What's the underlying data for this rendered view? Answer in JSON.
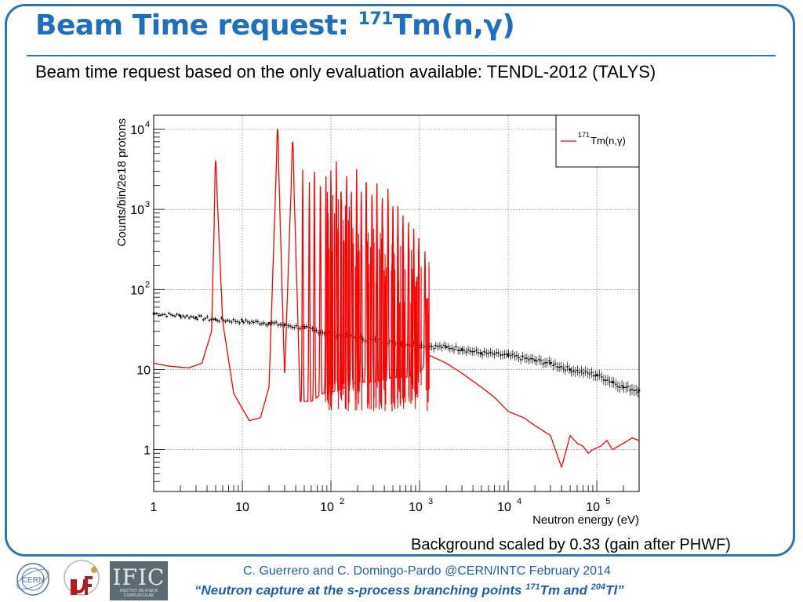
{
  "header": {
    "title_main": "Beam Time request: ",
    "title_sup": "171",
    "title_tail": "Tm(n,γ)",
    "subtitle": "Beam time request based on the only evaluation available: TENDL-2012 (TALYS)"
  },
  "note": "Background scaled by 0.33 (gain after PHWF)",
  "footer": {
    "line1": "C. Guerrero and C. Domingo-Pardo @CERN/INTC February 2014",
    "line2_part1": "“Neutron capture at the s-process branching points ",
    "line2_sup1": "171",
    "line2_part2": "Tm and ",
    "line2_sup2": "204",
    "line2_part3": "Tl”"
  },
  "logos": {
    "cern": "CERN",
    "ific": "IFIC",
    "ific_sub": "INSTITUT DE FISICA CORPUSCULAR",
    "us": "UNIVERSIDAD DE SEVILLA"
  },
  "colors": {
    "accent": "#1f6fc0",
    "frame": "#2e75b6",
    "signal": "#ff0000",
    "background": "#000000"
  },
  "chart_data": {
    "type": "line",
    "xscale": "log",
    "yscale": "log",
    "xlim": [
      1,
      300000
    ],
    "ylim": [
      0.3,
      15000
    ],
    "xlabel": "Neutron energy (eV)",
    "ylabel": "Counts/bin/2e18 protons",
    "grid": true,
    "x_ticks": [
      {
        "value": 1,
        "base": "1",
        "exp": ""
      },
      {
        "value": 10,
        "base": "10",
        "exp": ""
      },
      {
        "value": 100,
        "base": "10",
        "exp": "2"
      },
      {
        "value": 1000,
        "base": "10",
        "exp": "3"
      },
      {
        "value": 10000,
        "base": "10",
        "exp": "4"
      },
      {
        "value": 100000,
        "base": "10",
        "exp": "5"
      }
    ],
    "y_ticks": [
      {
        "value": 1,
        "base": "1",
        "exp": ""
      },
      {
        "value": 10,
        "base": "10",
        "exp": ""
      },
      {
        "value": 100,
        "base": "10",
        "exp": "2"
      },
      {
        "value": 1000,
        "base": "10",
        "exp": "3"
      },
      {
        "value": 10000,
        "base": "10",
        "exp": "4"
      }
    ],
    "legend": {
      "position": "top-right",
      "sup": "171",
      "label": "Tm(n,γ)"
    },
    "series": [
      {
        "name": "171Tm(n,γ)",
        "color": "#ff0000",
        "baseline": [
          [
            1,
            12
          ],
          [
            1.5,
            11
          ],
          [
            2.5,
            10.5
          ],
          [
            3.5,
            12
          ],
          [
            4.5,
            30
          ],
          [
            5,
            4000
          ],
          [
            6,
            40
          ],
          [
            8,
            5
          ],
          [
            12,
            2.3
          ],
          [
            16,
            2.5
          ],
          [
            20,
            6
          ],
          [
            25,
            10000
          ],
          [
            30,
            8
          ],
          [
            37,
            7000
          ],
          [
            45,
            4
          ],
          [
            60,
            4
          ],
          [
            80,
            5
          ],
          [
            120,
            5.5
          ],
          [
            200,
            7
          ],
          [
            300,
            7
          ],
          [
            500,
            8
          ],
          [
            700,
            8
          ],
          [
            1000,
            9
          ],
          [
            1300,
            15
          ],
          [
            2000,
            12
          ],
          [
            3000,
            9
          ],
          [
            5000,
            6
          ],
          [
            7000,
            4.5
          ],
          [
            10000,
            3
          ],
          [
            15000,
            2.5
          ],
          [
            20000,
            2
          ],
          [
            30000,
            1.5
          ],
          [
            40000,
            0.6
          ],
          [
            50000,
            1.5
          ],
          [
            60000,
            1.2
          ],
          [
            70000,
            1.1
          ],
          [
            80000,
            0.9
          ],
          [
            90000,
            1
          ],
          [
            110000,
            1.1
          ],
          [
            130000,
            1.3
          ],
          [
            150000,
            1.0
          ],
          [
            200000,
            1.2
          ],
          [
            250000,
            1.4
          ],
          [
            300000,
            1.3
          ]
        ],
        "resonances": [
          {
            "e": 5,
            "peak": 4000
          },
          {
            "e": 25,
            "peak": 10000
          },
          {
            "e": 37,
            "peak": 7000
          },
          {
            "e": 48,
            "peak": 3200
          },
          {
            "e": 57,
            "peak": 2200
          },
          {
            "e": 65,
            "peak": 3600
          },
          {
            "e": 76,
            "peak": 2400
          },
          {
            "e": 88,
            "peak": 2600
          },
          {
            "e": 100,
            "peak": 3300
          },
          {
            "e": 115,
            "peak": 4000
          },
          {
            "e": 130,
            "peak": 2100
          },
          {
            "e": 150,
            "peak": 2900
          },
          {
            "e": 170,
            "peak": 2000
          },
          {
            "e": 195,
            "peak": 3200
          },
          {
            "e": 220,
            "peak": 1800
          },
          {
            "e": 250,
            "peak": 2800
          },
          {
            "e": 290,
            "peak": 1700
          },
          {
            "e": 330,
            "peak": 2300
          },
          {
            "e": 380,
            "peak": 1600
          },
          {
            "e": 440,
            "peak": 1900
          },
          {
            "e": 500,
            "peak": 1300
          },
          {
            "e": 570,
            "peak": 1100
          },
          {
            "e": 650,
            "peak": 900
          },
          {
            "e": 750,
            "peak": 700
          },
          {
            "e": 860,
            "peak": 600
          },
          {
            "e": 980,
            "peak": 450
          },
          {
            "e": 1150,
            "peak": 300
          }
        ]
      },
      {
        "name": "background",
        "color": "#000000",
        "points": [
          [
            1,
            50
          ],
          [
            2,
            47
          ],
          [
            3,
            45
          ],
          [
            5,
            42
          ],
          [
            10,
            40
          ],
          [
            20,
            38
          ],
          [
            30,
            36
          ],
          [
            50,
            33
          ],
          [
            100,
            28
          ],
          [
            200,
            25
          ],
          [
            300,
            23
          ],
          [
            500,
            22
          ],
          [
            1000,
            20
          ],
          [
            2000,
            19
          ],
          [
            3000,
            18
          ],
          [
            5000,
            16
          ],
          [
            10000,
            15
          ],
          [
            20000,
            13
          ],
          [
            30000,
            12
          ],
          [
            50000,
            10
          ],
          [
            100000,
            8.5
          ],
          [
            150000,
            7
          ],
          [
            200000,
            6
          ],
          [
            300000,
            5.5
          ]
        ]
      }
    ]
  }
}
